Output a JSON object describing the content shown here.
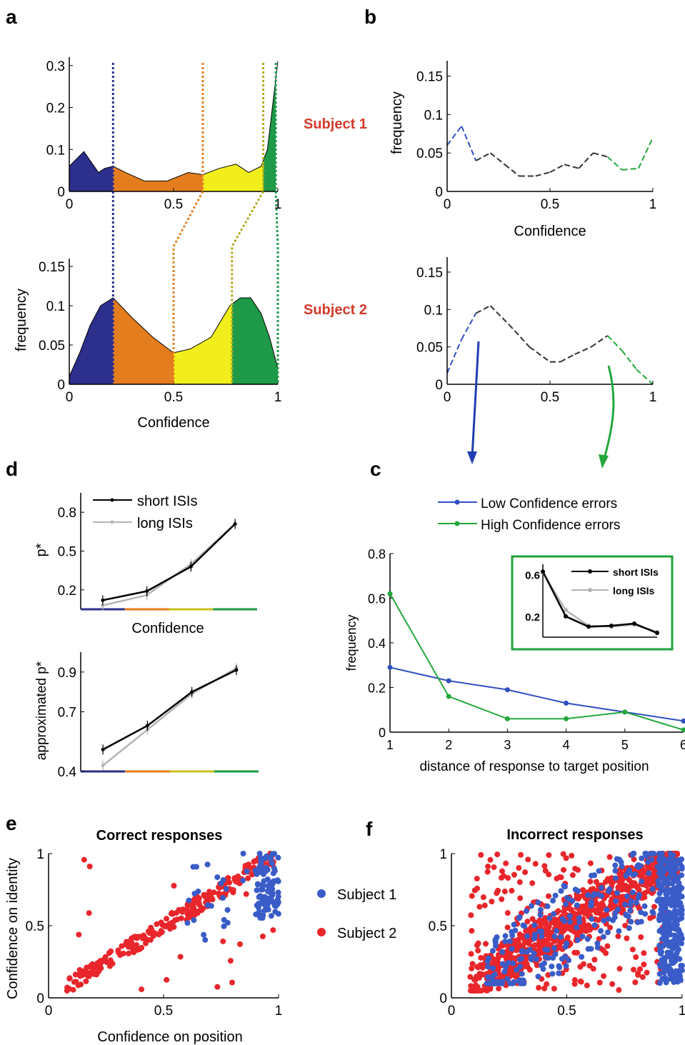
{
  "panel_labels": {
    "a": "a",
    "b": "b",
    "c": "c",
    "d": "d",
    "e": "e",
    "f": "f"
  },
  "subject_labels": {
    "s1": "Subject 1",
    "s2": "Subject 2"
  },
  "colors": {
    "blue": "#2c2f8c",
    "orange": "#e47d1e",
    "yellow": "#f1ee1c",
    "green": "#1e9a48",
    "subject_label": "#d43a2a",
    "low_conf": "#3050c0",
    "high_conf": "#24a83c",
    "subject1_dot": "#3a5cc8",
    "subject2_dot": "#e8262b",
    "short": "#000000",
    "long": "#b4b4b4"
  },
  "chart_data": [
    {
      "id": "a_top",
      "type": "area",
      "subject": "Subject 1",
      "x": [
        0,
        0.07,
        0.14,
        0.17,
        0.21,
        0.27,
        0.36,
        0.47,
        0.57,
        0.64,
        0.72,
        0.8,
        0.86,
        0.92,
        0.95,
        1.0
      ],
      "y": [
        0.06,
        0.095,
        0.045,
        0.055,
        0.06,
        0.045,
        0.025,
        0.025,
        0.045,
        0.04,
        0.055,
        0.065,
        0.045,
        0.06,
        0.1,
        0.31
      ],
      "ylim": [
        0,
        0.32
      ],
      "xticks": [
        "0",
        "0.5",
        "1"
      ],
      "yticks": [
        "0",
        "0.1",
        "0.2",
        "0.3"
      ],
      "thresholds": [
        0.21,
        0.64,
        0.93,
        0.99
      ]
    },
    {
      "id": "a_bottom",
      "type": "area",
      "subject": "Subject 2",
      "x": [
        0,
        0.05,
        0.1,
        0.15,
        0.21,
        0.3,
        0.4,
        0.5,
        0.58,
        0.68,
        0.77,
        0.82,
        0.87,
        0.92,
        0.96,
        1.0
      ],
      "y": [
        0.01,
        0.04,
        0.075,
        0.1,
        0.11,
        0.085,
        0.06,
        0.04,
        0.045,
        0.06,
        0.1,
        0.11,
        0.11,
        0.09,
        0.06,
        0.02
      ],
      "ylim": [
        0,
        0.16
      ],
      "xticks": [
        "0",
        "0.5",
        "1"
      ],
      "yticks": [
        "0",
        "0.05",
        "0.1",
        "0.15"
      ],
      "thresholds": [
        0.21,
        0.5,
        0.78,
        1.0
      ],
      "ylabel": "frequency",
      "xlabel": "Confidence"
    },
    {
      "id": "b_top",
      "type": "line",
      "subject": "Subject 1",
      "x": [
        0,
        0.07,
        0.14,
        0.21,
        0.28,
        0.35,
        0.43,
        0.5,
        0.57,
        0.64,
        0.71,
        0.78,
        0.85,
        0.93,
        1.0
      ],
      "y": [
        0.06,
        0.085,
        0.04,
        0.05,
        0.035,
        0.02,
        0.02,
        0.025,
        0.035,
        0.03,
        0.05,
        0.045,
        0.028,
        0.03,
        0.07
      ],
      "ylim": [
        0,
        0.17
      ],
      "ylabel": "frequency",
      "xlabel": "Confidence",
      "xticks": [
        "0",
        "0.5",
        "1"
      ],
      "yticks": [
        "0",
        "0.05",
        "0.1",
        "0.15"
      ]
    },
    {
      "id": "b_bottom",
      "type": "line",
      "subject": "Subject 2",
      "x": [
        0,
        0.07,
        0.14,
        0.21,
        0.3,
        0.4,
        0.5,
        0.55,
        0.62,
        0.7,
        0.78,
        0.85,
        0.92,
        1.0
      ],
      "y": [
        0.015,
        0.06,
        0.095,
        0.105,
        0.08,
        0.05,
        0.03,
        0.03,
        0.04,
        0.05,
        0.065,
        0.045,
        0.02,
        0
      ],
      "ylim": [
        0,
        0.17
      ],
      "xticks": [
        "0",
        "0.5",
        "1"
      ],
      "yticks": [
        "0",
        "0.05",
        "0.1",
        "0.15"
      ]
    },
    {
      "id": "c",
      "type": "line",
      "xlabel": "distance of response to target position",
      "ylabel": "frequency",
      "x": [
        1,
        2,
        3,
        4,
        5,
        6
      ],
      "ylim": [
        0,
        0.8
      ],
      "xticks": [
        "1",
        "2",
        "3",
        "4",
        "5",
        "6"
      ],
      "yticks": [
        "0",
        "0.2",
        "0.4",
        "0.6",
        "0.8"
      ],
      "series": [
        {
          "name": "Low Confidence errors",
          "values": [
            0.29,
            0.23,
            0.19,
            0.13,
            0.09,
            0.05
          ]
        },
        {
          "name": "High Confidence errors",
          "values": [
            0.62,
            0.16,
            0.06,
            0.06,
            0.09,
            0.01
          ]
        }
      ],
      "inset": {
        "yticks": [
          "0.2",
          "0.6"
        ],
        "series": [
          {
            "name": "short ISIs",
            "values": [
              0.63,
              0.2,
              0.1,
              0.11,
              0.13,
              0.04
            ]
          },
          {
            "name": "long ISIs",
            "values": [
              0.62,
              0.26,
              0.11,
              0.1,
              0.12,
              0.05
            ]
          }
        ]
      }
    },
    {
      "id": "d_top",
      "type": "line",
      "ylabel": "p*",
      "xlabel": "Confidence",
      "x": [
        1,
        2,
        3,
        4
      ],
      "ylim": [
        0.05,
        0.95
      ],
      "yticks": [
        "0.2",
        "0.5",
        "0.8"
      ],
      "series": [
        {
          "name": "short ISIs",
          "values": [
            0.12,
            0.19,
            0.38,
            0.71
          ]
        },
        {
          "name": "long ISIs",
          "values": [
            0.08,
            0.16,
            0.4,
            0.71
          ]
        }
      ]
    },
    {
      "id": "d_bottom",
      "type": "line",
      "ylabel": "approximated p*",
      "x": [
        1,
        2,
        3,
        4
      ],
      "ylim": [
        0.4,
        1.0
      ],
      "yticks": [
        "0.4",
        "0.7",
        "0.9"
      ],
      "series": [
        {
          "name": "short ISIs",
          "values": [
            0.51,
            0.63,
            0.8,
            0.91
          ]
        },
        {
          "name": "long ISIs",
          "values": [
            0.43,
            0.61,
            0.79,
            0.92
          ]
        }
      ]
    },
    {
      "id": "e",
      "type": "scatter",
      "title": "Correct responses",
      "xlabel": "Confidence on position",
      "ylabel": "Confidence on identity",
      "xlim": [
        0,
        1
      ],
      "ylim": [
        0,
        1
      ],
      "xticks": [
        "0",
        "0.5",
        "1"
      ],
      "yticks": [
        "0",
        "0.5",
        "1"
      ],
      "series": [
        {
          "name": "Subject 1"
        },
        {
          "name": "Subject 2"
        }
      ]
    },
    {
      "id": "f",
      "type": "scatter",
      "title": "Incorrect responses",
      "xlim": [
        0,
        1
      ],
      "ylim": [
        0,
        1
      ],
      "xticks": [
        "0",
        "0.5",
        "1"
      ],
      "yticks": [
        "0",
        "0.5",
        "1"
      ],
      "series": [
        {
          "name": "Subject 1"
        },
        {
          "name": "Subject 2"
        }
      ]
    }
  ]
}
